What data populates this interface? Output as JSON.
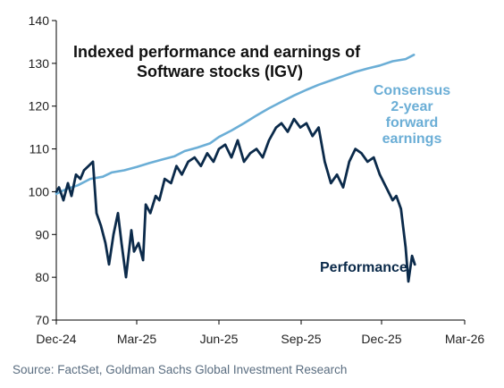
{
  "chart_data": {
    "type": "line",
    "title_lines": [
      "Indexed performance and earnings of",
      "Software stocks (IGV)"
    ],
    "x_tick_labels": [
      "Dec-24",
      "Mar-25",
      "Jun-25",
      "Sep-25",
      "Dec-25",
      "Mar-26"
    ],
    "ylim": [
      70,
      140
    ],
    "y_ticks": [
      70,
      80,
      90,
      100,
      110,
      120,
      130,
      140
    ],
    "grid": false,
    "series": [
      {
        "name_lines": [
          "Consensus",
          "2-year",
          "forward",
          "earnings"
        ],
        "color": "#6BAED6",
        "x": [
          "2024-12-31",
          "2025-01-10",
          "2025-01-24",
          "2025-02-07",
          "2025-02-21",
          "2025-03-03",
          "2025-03-17",
          "2025-03-31",
          "2025-04-14",
          "2025-04-28",
          "2025-05-12",
          "2025-05-23",
          "2025-06-06",
          "2025-06-20",
          "2025-06-30",
          "2025-07-14",
          "2025-07-28",
          "2025-08-11",
          "2025-08-25",
          "2025-09-08",
          "2025-09-22",
          "2025-10-06",
          "2025-10-20",
          "2025-11-03",
          "2025-11-17",
          "2025-12-01",
          "2025-12-15",
          "2025-12-29",
          "2026-01-12",
          "2026-01-26",
          "2026-02-04"
        ],
        "values": [
          99.5,
          100.5,
          101.5,
          103,
          103.5,
          104.5,
          105,
          105.8,
          106.7,
          107.5,
          108.3,
          109.5,
          110.3,
          111.3,
          112.8,
          114.3,
          116,
          117.8,
          119.5,
          121,
          122.5,
          123.8,
          125,
          126,
          127,
          128,
          128.8,
          129.5,
          130.5,
          131,
          132
        ]
      },
      {
        "name": "Performance",
        "color": "#0B2A4A",
        "x": [
          "2024-12-31",
          "2025-01-03",
          "2025-01-08",
          "2025-01-13",
          "2025-01-17",
          "2025-01-22",
          "2025-01-27",
          "2025-01-31",
          "2025-02-05",
          "2025-02-10",
          "2025-02-14",
          "2025-02-19",
          "2025-02-24",
          "2025-02-28",
          "2025-03-05",
          "2025-03-10",
          "2025-03-14",
          "2025-03-19",
          "2025-03-25",
          "2025-03-28",
          "2025-04-02",
          "2025-04-07",
          "2025-04-10",
          "2025-04-15",
          "2025-04-21",
          "2025-04-25",
          "2025-05-01",
          "2025-05-08",
          "2025-05-14",
          "2025-05-20",
          "2025-05-27",
          "2025-06-03",
          "2025-06-10",
          "2025-06-17",
          "2025-06-24",
          "2025-06-30",
          "2025-07-07",
          "2025-07-14",
          "2025-07-21",
          "2025-07-28",
          "2025-08-04",
          "2025-08-11",
          "2025-08-18",
          "2025-08-25",
          "2025-09-02",
          "2025-09-08",
          "2025-09-15",
          "2025-09-22",
          "2025-09-29",
          "2025-10-06",
          "2025-10-13",
          "2025-10-20",
          "2025-10-27",
          "2025-11-03",
          "2025-11-10",
          "2025-11-17",
          "2025-11-24",
          "2025-12-01",
          "2025-12-08",
          "2025-12-15",
          "2025-12-22",
          "2025-12-29",
          "2026-01-05",
          "2026-01-12",
          "2026-01-16",
          "2026-01-21",
          "2026-01-26",
          "2026-01-29",
          "2026-02-02",
          "2026-02-05"
        ],
        "values": [
          100,
          101,
          98,
          102,
          99,
          104,
          103,
          105,
          106,
          107,
          95,
          92,
          88,
          83,
          90,
          95,
          88,
          80,
          91,
          86,
          88,
          84,
          97,
          95,
          99,
          98,
          103,
          102,
          106,
          104,
          107,
          108,
          106,
          109,
          107,
          110,
          111,
          108,
          112,
          107,
          109,
          110,
          108,
          112,
          115,
          116,
          114,
          117,
          115,
          116,
          113,
          115,
          107,
          102,
          104,
          101,
          107,
          110,
          109,
          107,
          108,
          104,
          101,
          98,
          99,
          96,
          87,
          79,
          85,
          83
        ]
      }
    ]
  },
  "source": "Source: FactSet, Goldman Sachs Global Investment Research"
}
